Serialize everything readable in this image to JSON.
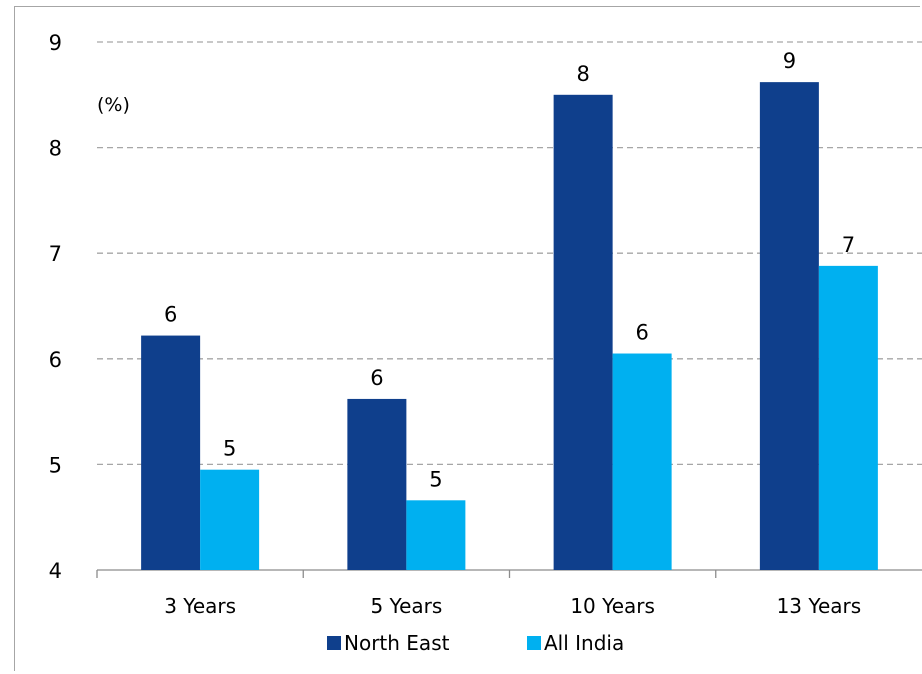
{
  "chart_data": {
    "type": "bar",
    "title": "",
    "unit_label": "(%)",
    "xlabel": "",
    "ylabel": "",
    "ylim": [
      4,
      9
    ],
    "yticks": [
      "4",
      "5",
      "6",
      "7",
      "8",
      "9"
    ],
    "grid": true,
    "legend_position": "bottom",
    "categories": [
      "3 Years",
      "5 Years",
      "10 Years",
      "13 Years"
    ],
    "series": [
      {
        "name": "North East",
        "color": "#0f3f8c",
        "values": [
          6.22,
          5.62,
          8.5,
          8.62
        ],
        "labels": [
          "6",
          "6",
          "8",
          "9"
        ]
      },
      {
        "name": "All India",
        "color": "#00b0f0",
        "values": [
          4.95,
          4.66,
          6.05,
          6.88
        ],
        "labels": [
          "5",
          "5",
          "6",
          "7"
        ]
      }
    ]
  }
}
